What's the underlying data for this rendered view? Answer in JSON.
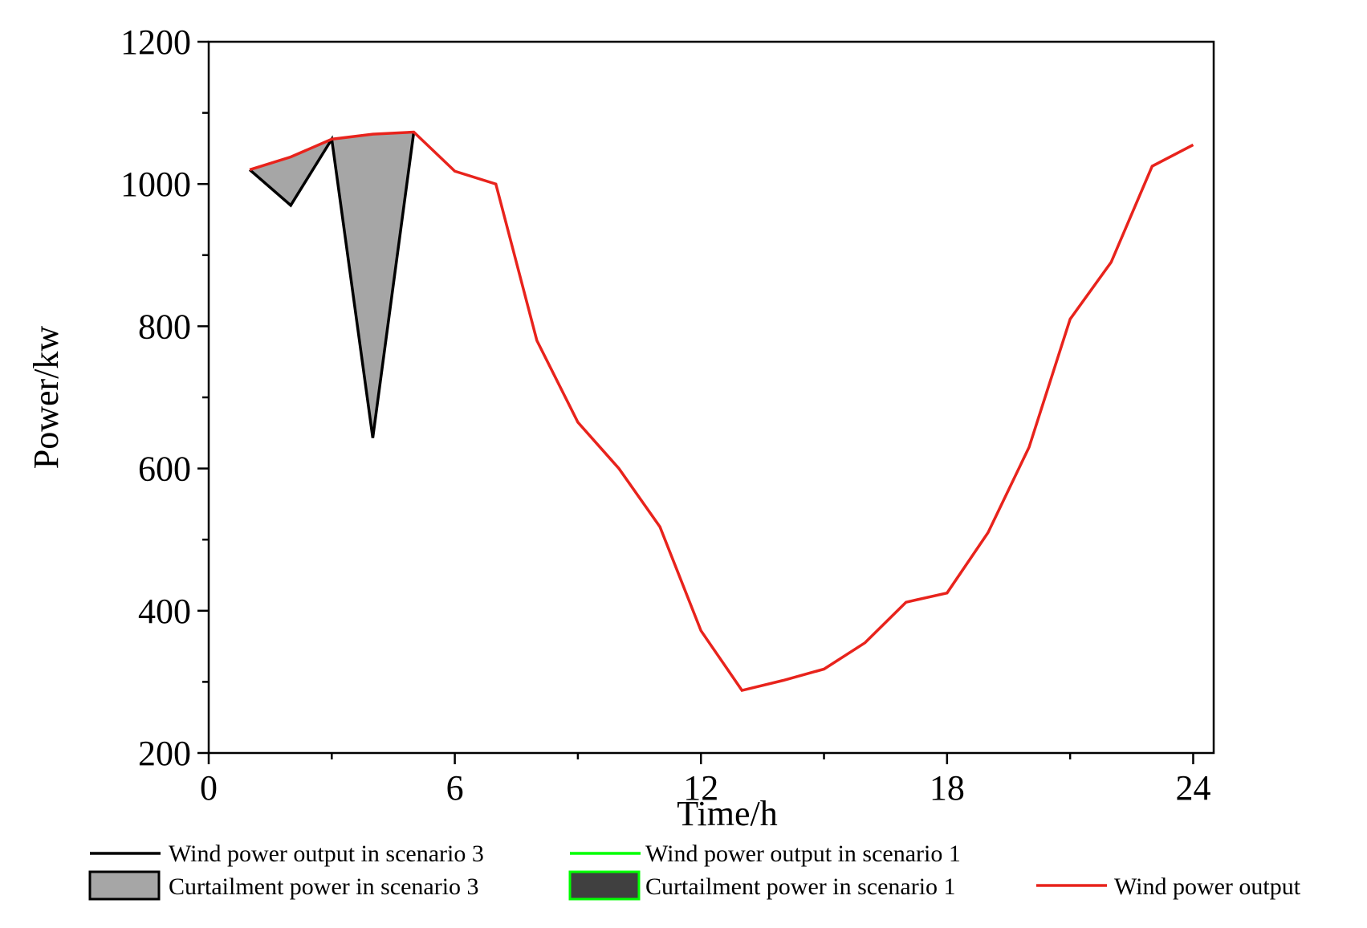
{
  "chart_data": {
    "type": "line",
    "title": "",
    "xlabel": "Time/h",
    "ylabel": "Power/kw",
    "xlim": [
      0,
      24.5
    ],
    "ylim": [
      200,
      1200
    ],
    "x_ticks": [
      0,
      6,
      12,
      18,
      24
    ],
    "y_ticks": [
      200,
      400,
      600,
      800,
      1000,
      1200
    ],
    "x_tick_labels": [
      "0",
      "6",
      "12",
      "18",
      "24"
    ],
    "y_tick_labels": [
      "200",
      "400",
      "600",
      "800",
      "1000",
      "1200"
    ],
    "grid": false,
    "legend_position": "bottom",
    "series": [
      {
        "name": "Wind power output",
        "color": "#e8231c",
        "x": [
          1,
          2,
          3,
          4,
          5,
          6,
          7,
          8,
          9,
          10,
          11,
          12,
          13,
          14,
          15,
          16,
          17,
          18,
          19,
          20,
          21,
          22,
          23,
          24
        ],
        "values": [
          1020,
          1038,
          1063,
          1070,
          1073,
          1018,
          1000,
          780,
          665,
          600,
          518,
          372,
          288,
          302,
          318,
          355,
          412,
          425,
          510,
          630,
          810,
          890,
          1025,
          1055
        ]
      },
      {
        "name": "Wind power output in scenario 3",
        "color": "#000000",
        "x": [
          1,
          2,
          3,
          4,
          5
        ],
        "values": [
          1020,
          970,
          1063,
          643,
          1073
        ]
      },
      {
        "name": "Wind power output in scenario 1",
        "color": "#00ff00",
        "x": [],
        "values": []
      }
    ],
    "areas": [
      {
        "name": "Curtailment power in scenario 3",
        "fill": "#a6a6a6",
        "stroke": "#000000",
        "x": [
          1,
          2,
          3,
          4,
          5
        ],
        "upper": [
          1020,
          1038,
          1063,
          1070,
          1073
        ],
        "lower": [
          1020,
          970,
          1063,
          643,
          1073
        ]
      },
      {
        "name": "Curtailment power in scenario 1",
        "fill": "#404040",
        "stroke": "#00ff00",
        "x": [],
        "upper": [],
        "lower": []
      }
    ],
    "legend": [
      {
        "label": "Wind power output in scenario 3",
        "kind": "line",
        "color": "#000000"
      },
      {
        "label": "Wind power output in scenario 1",
        "kind": "line",
        "color": "#00ff00"
      },
      {
        "label": "Curtailment power in scenario 3",
        "kind": "patch",
        "fill": "#a6a6a6",
        "stroke": "#000000"
      },
      {
        "label": "Curtailment power in scenario 1",
        "kind": "patch",
        "fill": "#404040",
        "stroke": "#00ff00"
      },
      {
        "label": "Wind power output",
        "kind": "line",
        "color": "#e8231c"
      }
    ]
  }
}
